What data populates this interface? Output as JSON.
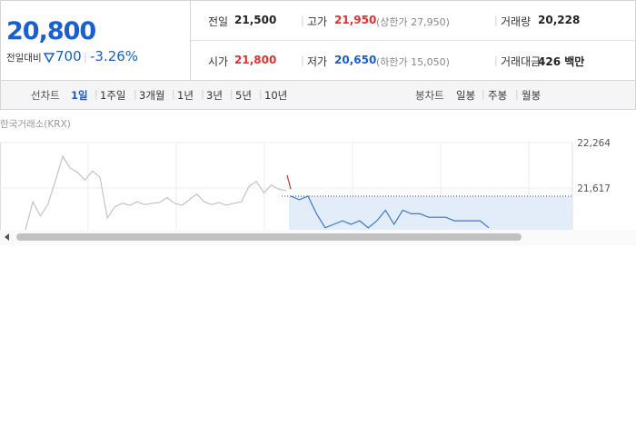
{
  "price": {
    "current": "20,800",
    "change_label": "전일대비",
    "change": "700",
    "change_pct": "-3.26%"
  },
  "stats": [
    {
      "label": "전일",
      "value": "21,500"
    },
    {
      "label": "고가",
      "value": "21,950",
      "note": "(상한가 27,950)"
    },
    {
      "label": "거래량",
      "value": "20,228"
    },
    {
      "label": "시가",
      "value": "21,800"
    },
    {
      "label": "저가",
      "value": "20,650",
      "note": "(하한가 15,050)"
    },
    {
      "label": "거래대금",
      "value": "426 백만"
    }
  ],
  "tabs": {
    "line_label": "선차트",
    "line": [
      "1일",
      "1주일",
      "3개월",
      "1년",
      "3년",
      "5년",
      "10년"
    ],
    "candle_label": "봉차트",
    "candle": [
      "일봉",
      "주봉",
      "월봉"
    ]
  },
  "chart": {
    "source": "한국거래소(KRX)",
    "yticks": [
      {
        "value": 22264,
        "label": "22,264"
      },
      {
        "value": 21617,
        "label": "21,617"
      }
    ],
    "series": [
      {
        "color": "#c4c4c4",
        "values": [
          21020,
          21420,
          21220,
          21380,
          21710,
          22070,
          21900,
          21840,
          21730,
          21860,
          21770,
          21190,
          21350,
          21400,
          21370,
          21420,
          21380,
          21400,
          21410,
          21480,
          21400,
          21370,
          21450,
          21530,
          21420,
          21380,
          21410,
          21370,
          21400,
          21420,
          21640,
          21710,
          21550,
          21660,
          21600,
          21580
        ]
      },
      {
        "color": "#e03131",
        "values": [
          21800,
          21600
        ]
      },
      {
        "color": "#3a78c9",
        "values": [
          21500,
          21450,
          21500,
          21250,
          21050,
          21100,
          21150,
          21100,
          21150,
          21050,
          21150,
          21300,
          21100,
          21300,
          21250,
          21250,
          21200,
          21200,
          21200,
          21150,
          21150,
          21150,
          21150,
          21050
        ]
      }
    ]
  }
}
